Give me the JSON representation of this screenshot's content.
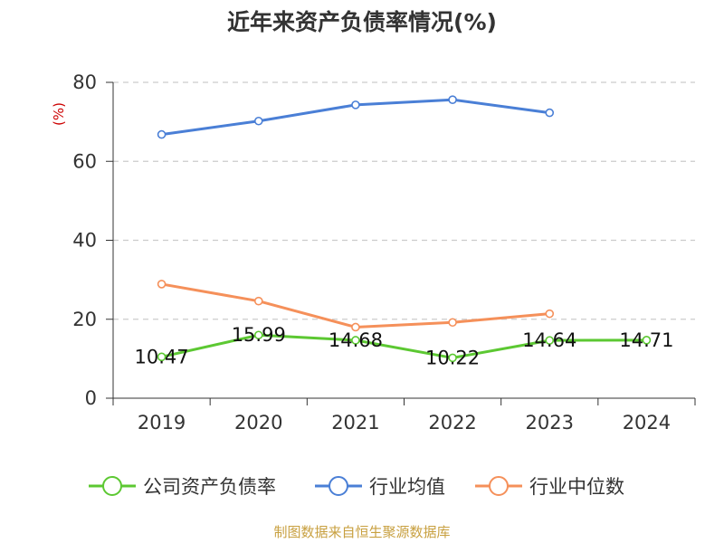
{
  "chart_data": {
    "type": "line",
    "title": "近年来资产负债率情况(%)",
    "ylabel": "(%)",
    "ylim": [
      0,
      80
    ],
    "yticks": [
      0,
      20,
      40,
      60,
      80
    ],
    "categories": [
      "2019",
      "2020",
      "2021",
      "2022",
      "2023",
      "2024"
    ],
    "grid": true,
    "legend_position": "bottom",
    "series": [
      {
        "name": "公司资产负债率",
        "color": "#5cc832",
        "values": [
          10.47,
          15.99,
          14.68,
          10.22,
          14.64,
          14.71
        ],
        "labels": [
          "10.47",
          "15.99",
          "14.68",
          "10.22",
          "14.64",
          "14.71"
        ]
      },
      {
        "name": "行业均值",
        "color": "#4a7fd6",
        "values": [
          66.8,
          70.2,
          74.3,
          75.6,
          72.3,
          null
        ]
      },
      {
        "name": "行业中位数",
        "color": "#f5905a",
        "values": [
          28.9,
          24.6,
          18.0,
          19.2,
          21.4,
          null
        ]
      }
    ],
    "source": "制图数据来自恒生聚源数据库"
  }
}
